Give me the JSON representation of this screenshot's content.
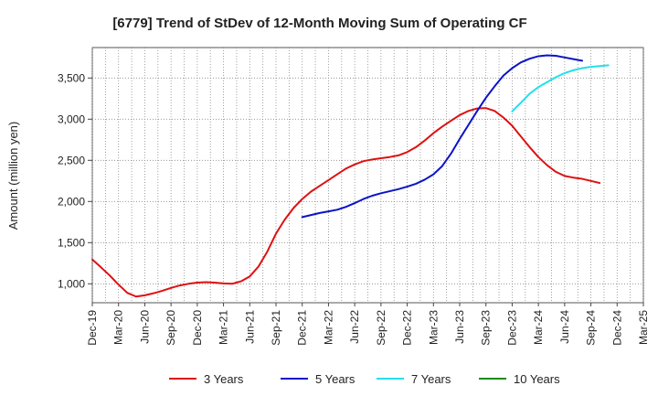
{
  "chart_data": {
    "type": "line",
    "title": "[6779]  Trend of StDev of 12-Month Moving Sum of Operating CF",
    "xlabel": "",
    "ylabel": "Amount (million yen)",
    "x_ticks": [
      "Dec-19",
      "Mar-20",
      "Jun-20",
      "Sep-20",
      "Dec-20",
      "Mar-21",
      "Jun-21",
      "Sep-21",
      "Dec-21",
      "Mar-22",
      "Jun-22",
      "Sep-22",
      "Dec-22",
      "Mar-23",
      "Jun-23",
      "Sep-23",
      "Dec-23",
      "Mar-24",
      "Jun-24",
      "Sep-24",
      "Dec-24",
      "Mar-25"
    ],
    "y_ticks": [
      1000,
      1500,
      2000,
      2500,
      3000,
      3500
    ],
    "y_tick_labels": [
      "1,000",
      "1,500",
      "2,000",
      "2,500",
      "3,000",
      "3,500"
    ],
    "ylim": [
      770,
      3870
    ],
    "grid": true,
    "legend_position": "bottom",
    "colors": {
      "3 Years": "#dd1111",
      "5 Years": "#0a14c8",
      "7 Years": "#22e0ee",
      "10 Years": "#1a8a1a"
    },
    "series": [
      {
        "name": "3 Years",
        "start": "Dec-19",
        "values": [
          1295,
          1200,
          1100,
          990,
          890,
          845,
          860,
          885,
          915,
          950,
          980,
          1000,
          1015,
          1020,
          1015,
          1005,
          1000,
          1030,
          1090,
          1210,
          1390,
          1610,
          1780,
          1920,
          2030,
          2120,
          2190,
          2260,
          2330,
          2400,
          2450,
          2490,
          2510,
          2525,
          2540,
          2560,
          2600,
          2660,
          2740,
          2830,
          2910,
          2980,
          3050,
          3100,
          3130,
          3135,
          3100,
          3020,
          2920,
          2790,
          2660,
          2540,
          2440,
          2360,
          2310,
          2290,
          2275,
          2250,
          2225
        ]
      },
      {
        "name": "5 Years",
        "start": "Dec-21",
        "values": [
          1810,
          1835,
          1860,
          1880,
          1900,
          1935,
          1980,
          2030,
          2070,
          2100,
          2125,
          2150,
          2180,
          2215,
          2265,
          2330,
          2430,
          2580,
          2760,
          2930,
          3100,
          3260,
          3400,
          3530,
          3620,
          3690,
          3735,
          3765,
          3775,
          3770,
          3750,
          3730,
          3710
        ]
      },
      {
        "name": "7 Years",
        "start": "Dec-23",
        "values": [
          3095,
          3200,
          3310,
          3390,
          3450,
          3510,
          3560,
          3595,
          3620,
          3635,
          3645,
          3655
        ]
      },
      {
        "name": "10 Years",
        "start": "Dec-24",
        "values": []
      }
    ]
  }
}
